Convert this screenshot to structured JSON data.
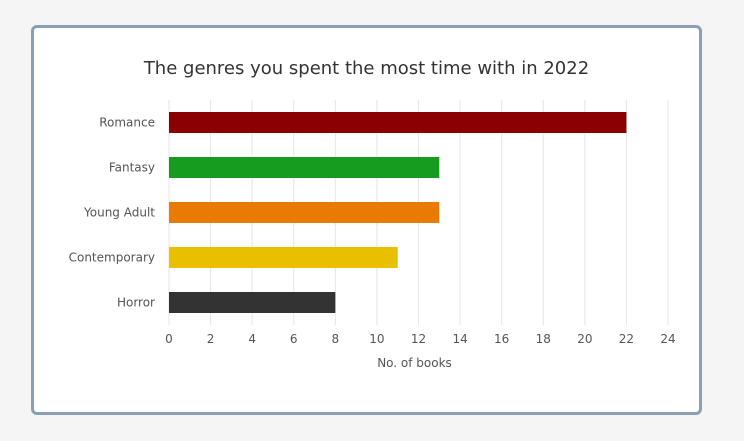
{
  "chart_data": {
    "type": "bar",
    "orientation": "horizontal",
    "title": "The genres you spent the most time with in 2022",
    "xlabel": "No. of books",
    "ylabel": "",
    "categories": [
      "Romance",
      "Fantasy",
      "Young Adult",
      "Contemporary",
      "Horror"
    ],
    "values": [
      22,
      13,
      13,
      11,
      8
    ],
    "colors": [
      "#8b0000",
      "#169c1f",
      "#e97b05",
      "#e8c000",
      "#333333"
    ],
    "xlim": [
      0,
      24
    ],
    "xticks": [
      0,
      2,
      4,
      6,
      8,
      10,
      12,
      14,
      16,
      18,
      20,
      22,
      24
    ],
    "grid": true,
    "legend": "none"
  }
}
